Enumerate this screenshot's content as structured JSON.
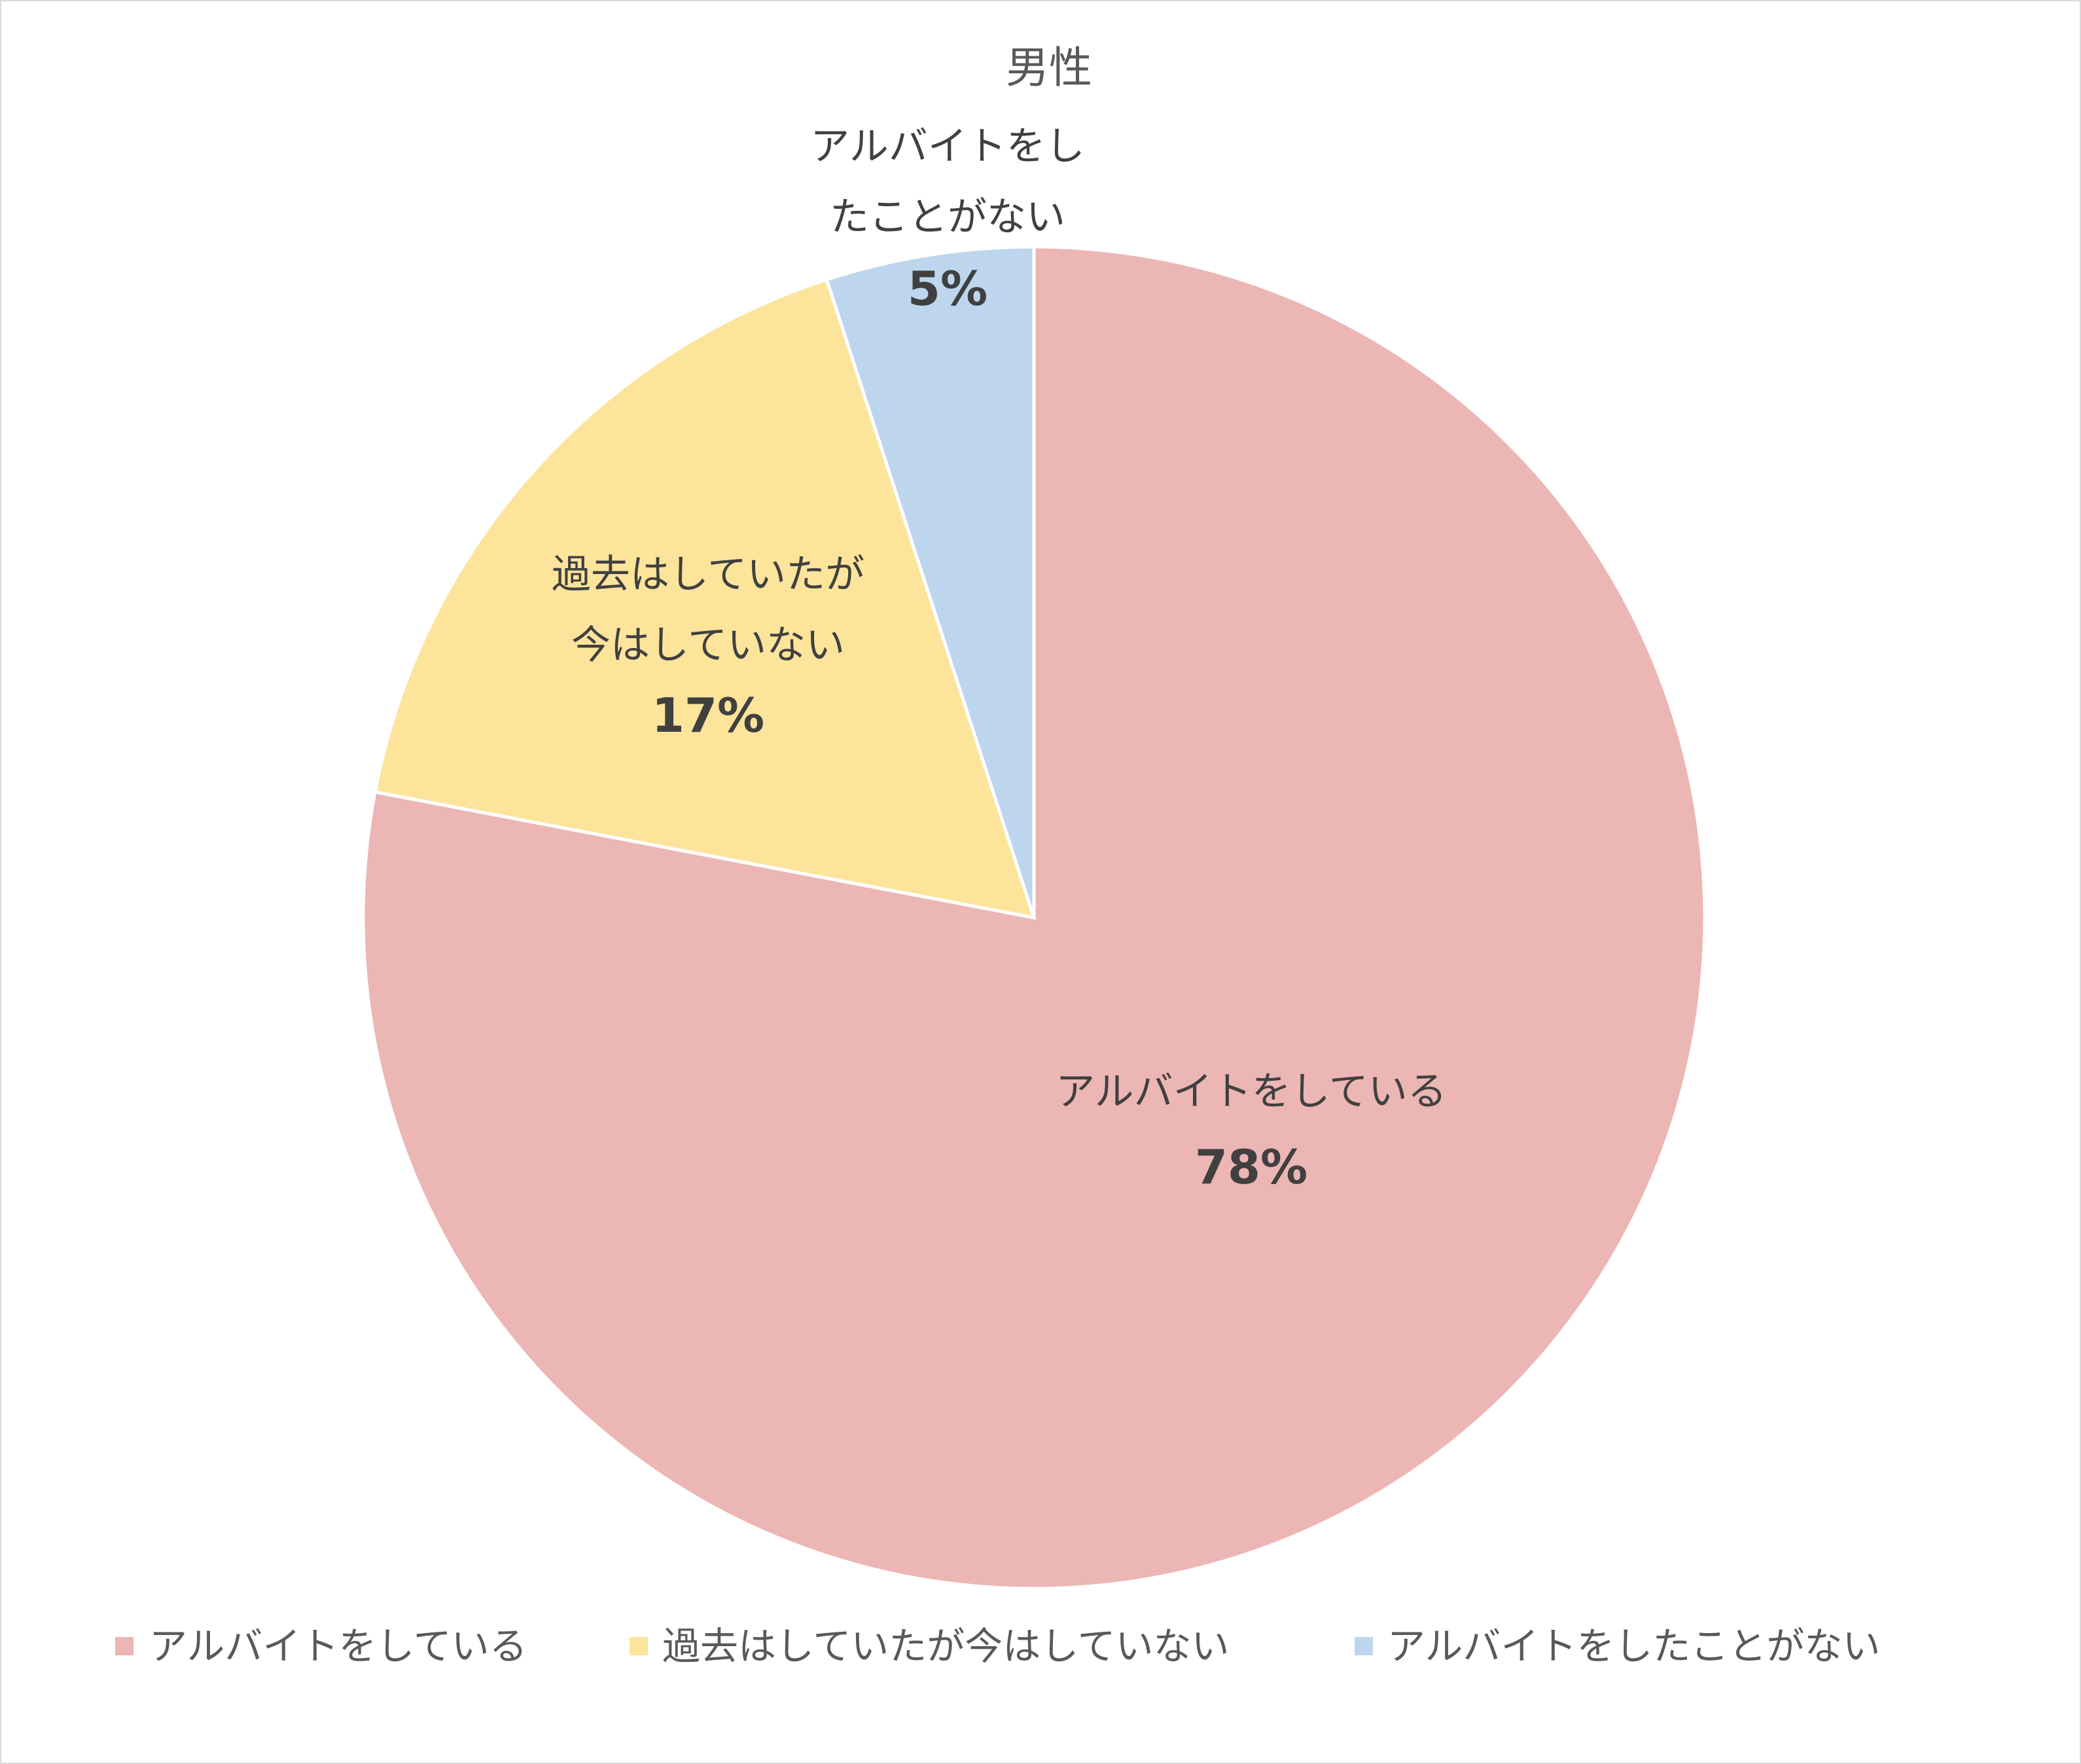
{
  "chart_data": {
    "type": "pie",
    "title": "男性",
    "series": [
      {
        "name": "アルバイトをしている",
        "value": 78,
        "label_lines": [
          "アルバイトをしている"
        ],
        "value_label": "78%",
        "color": "#ecb6b4"
      },
      {
        "name": "過去はしていたが今はしていない",
        "value": 17,
        "label_lines": [
          "過去はしていたが",
          "今はしていない"
        ],
        "value_label": "17%",
        "color": "#fde49b"
      },
      {
        "name": "アルバイトをしたことがない",
        "value": 5,
        "label_lines": [
          "アルバイトをし",
          "たことがない"
        ],
        "value_label": "5%",
        "color": "#bdd6ee"
      }
    ],
    "start_angle_deg": 0,
    "direction": "clockwise",
    "legend_position": "bottom",
    "slice_border_color": "#ffffff"
  }
}
